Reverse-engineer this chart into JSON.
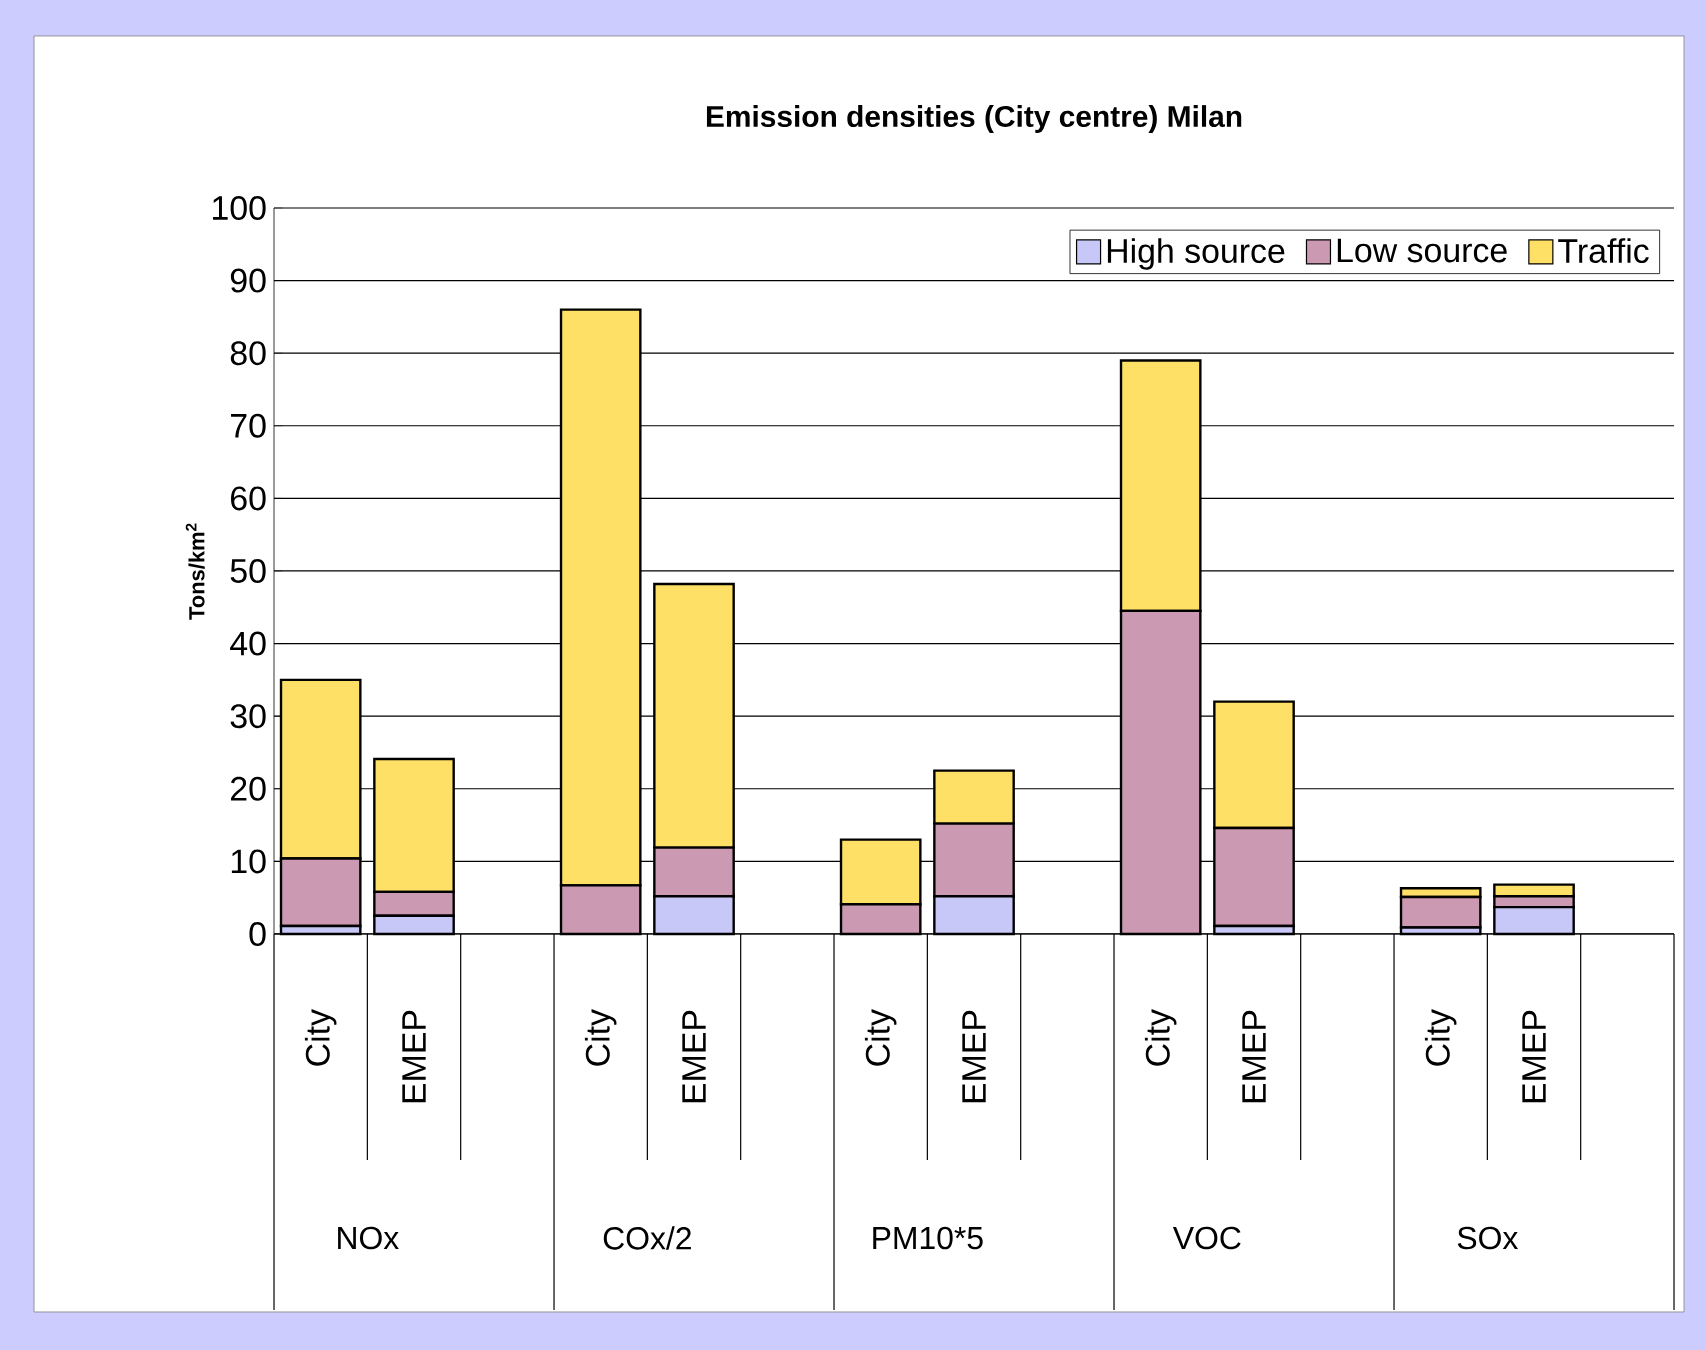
{
  "chart_data": {
    "type": "bar",
    "stacked": true,
    "title": "Emission densities (City centre) Milan",
    "ylabel": "Tons/km$^{2}$",
    "categories": [
      "City",
      "EMEP",
      "City",
      "EMEP",
      "City",
      "EMEP",
      "City",
      "EMEP",
      "City",
      "EMEP"
    ],
    "annotations": [
      "NOx",
      "COx/2",
      "PM10*5",
      "VOC",
      "SOx"
    ],
    "series": [
      {
        "name": "High source",
        "color": "#c8c8f8",
        "values": [
          1.1,
          2.5,
          0,
          5.2,
          0,
          5.2,
          0,
          1.1,
          0.9,
          3.7
        ]
      },
      {
        "name": "Low source",
        "color": "#cc99b3",
        "values": [
          9.3,
          3.3,
          6.7,
          6.7,
          4.1,
          10.0,
          44.5,
          13.5,
          4.2,
          1.5
        ]
      },
      {
        "name": "Traffic",
        "color": "#ffe066",
        "values": [
          24.6,
          18.3,
          79.3,
          36.3,
          8.9,
          7.3,
          34.5,
          17.4,
          1.2,
          1.6
        ]
      }
    ],
    "ylim": [
      0,
      100
    ],
    "yticks": [
      0,
      10,
      20,
      30,
      40,
      50,
      60,
      70,
      80,
      90,
      100
    ],
    "grid": "y",
    "legend": "top right"
  }
}
